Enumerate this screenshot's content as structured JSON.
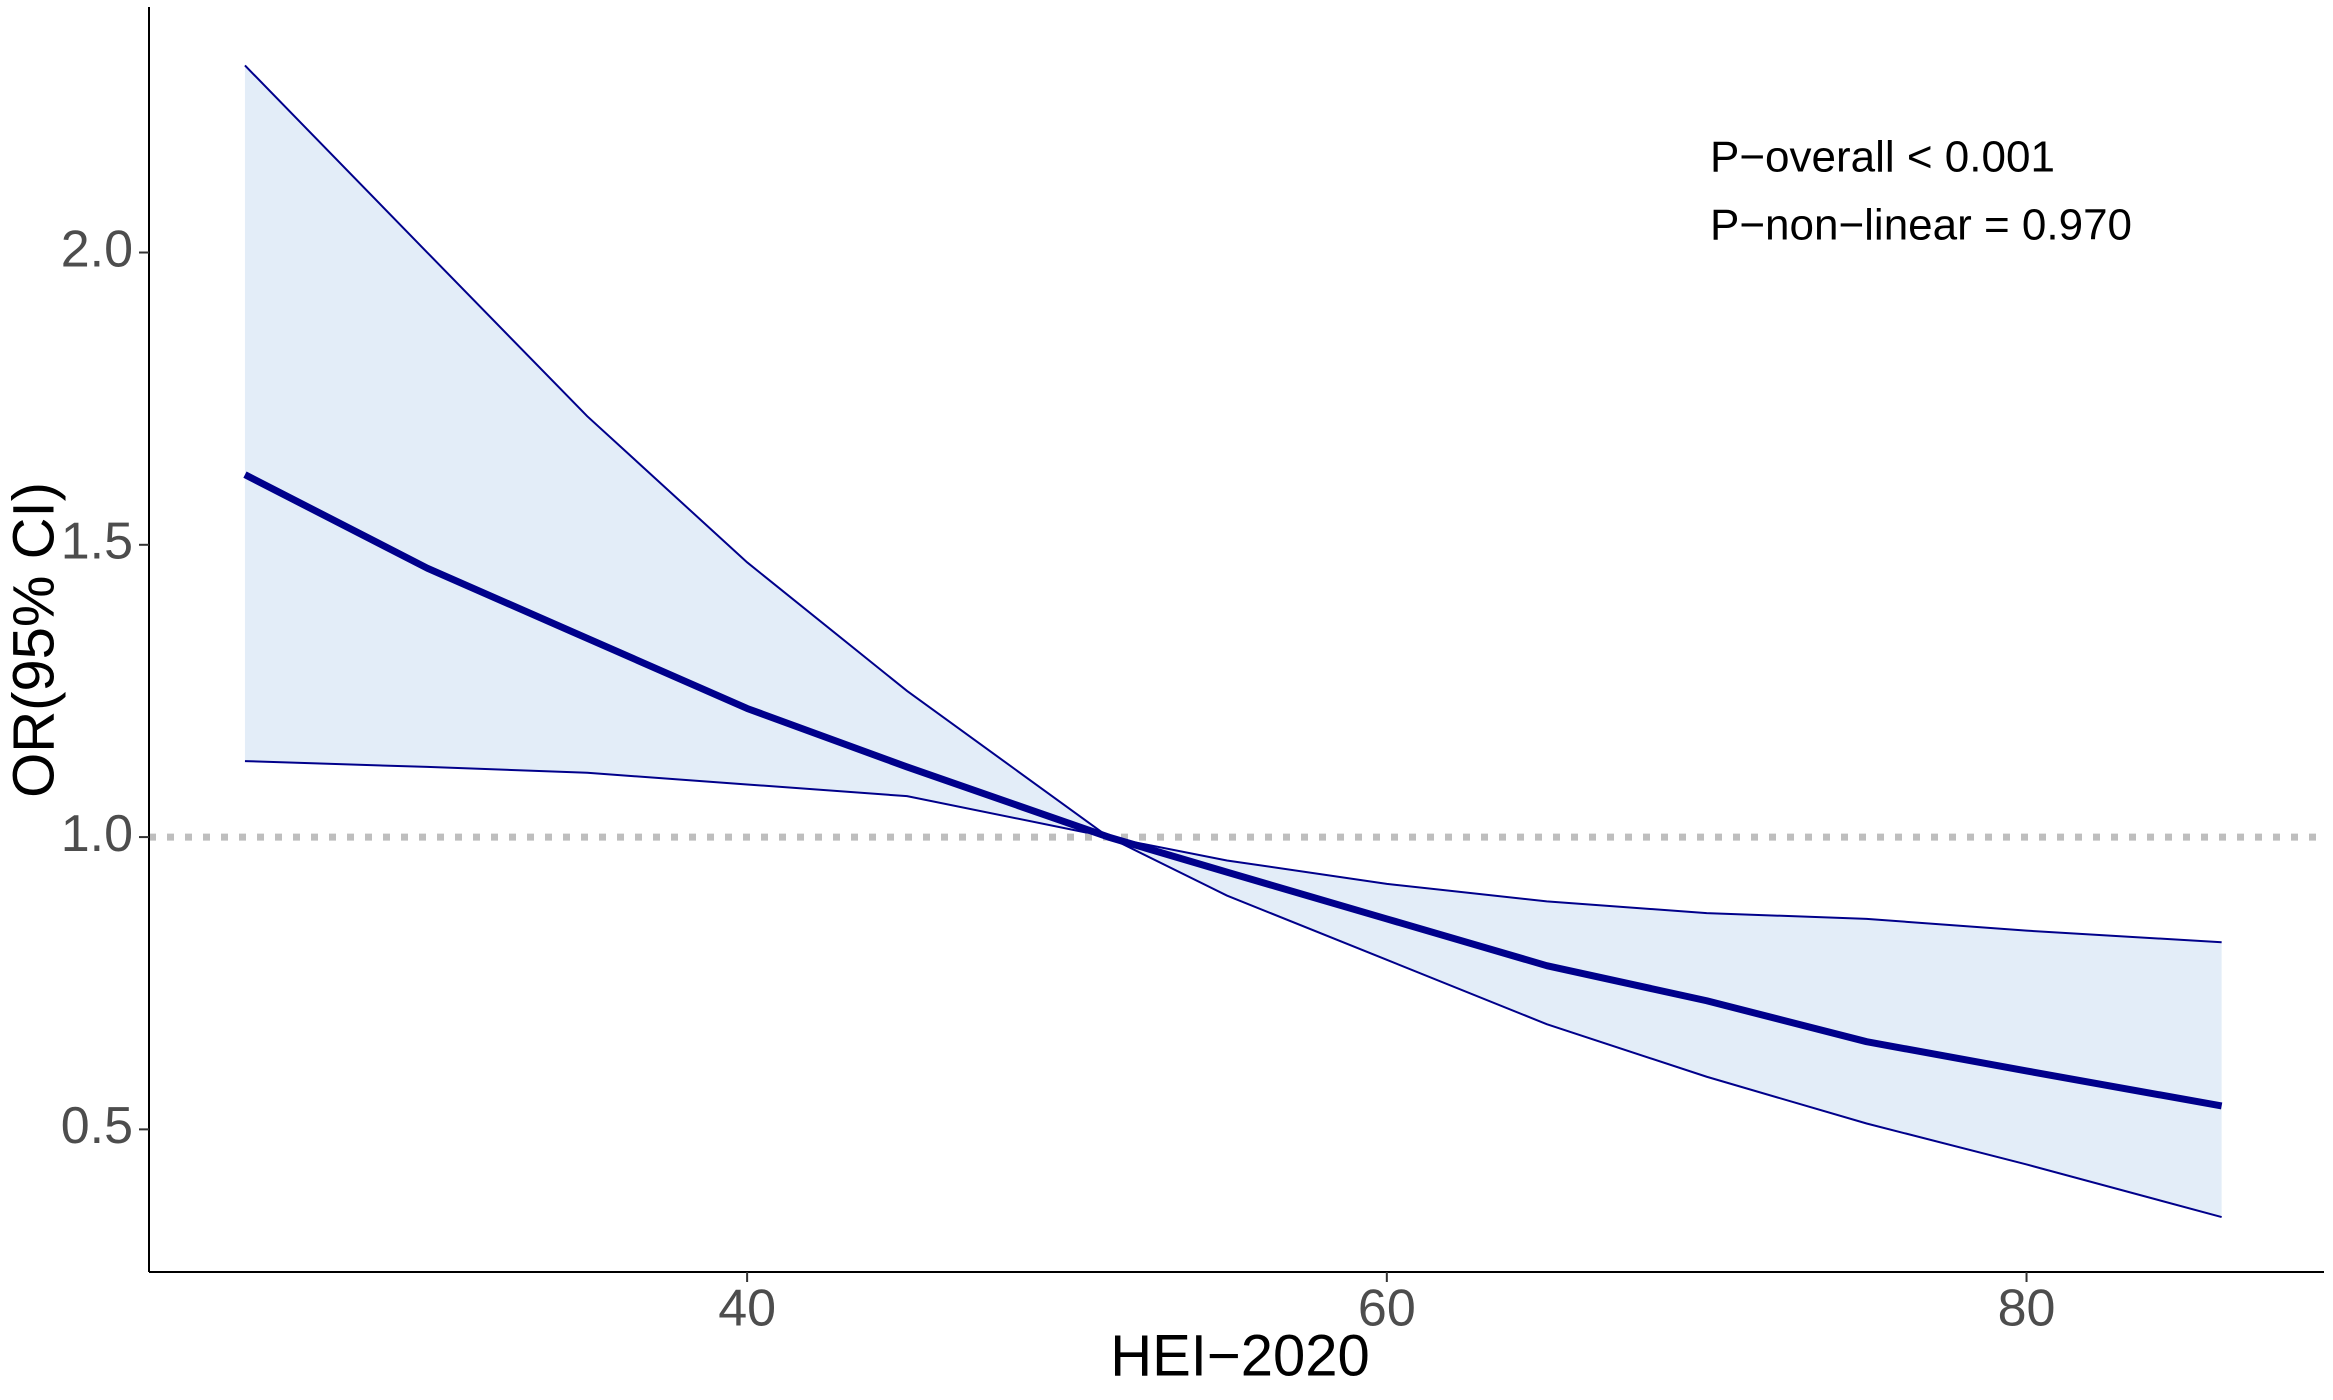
{
  "chart_data": {
    "type": "line",
    "x_label": "HEI−2020",
    "y_label": "OR(95% CI)",
    "annotations": [
      "P−overall < 0.001",
      "P−non−linear = 0.970"
    ],
    "x": [
      24.3,
      30,
      35,
      40,
      45,
      51.3,
      55,
      60,
      65,
      70,
      75,
      80,
      86.1
    ],
    "series": [
      {
        "color": "#00008b",
        "band_color": "#e3edf8",
        "values": [
          1.62,
          1.46,
          1.34,
          1.22,
          1.12,
          1.0,
          0.94,
          0.86,
          0.78,
          0.72,
          0.65,
          0.6,
          0.54
        ],
        "lower": [
          1.13,
          1.12,
          1.11,
          1.09,
          1.07,
          1.0,
          0.9,
          0.79,
          0.68,
          0.59,
          0.51,
          0.44,
          0.35
        ],
        "upper": [
          2.32,
          2.0,
          1.72,
          1.47,
          1.25,
          1.0,
          0.96,
          0.92,
          0.89,
          0.87,
          0.86,
          0.84,
          0.82
        ]
      }
    ],
    "xlim": [
      21.3,
      89.3
    ],
    "ylim": [
      0.256,
      2.42
    ],
    "xticks": [
      40,
      60,
      80
    ],
    "yticks": [
      {
        "value": 0.5,
        "label": "0.5"
      },
      {
        "value": 1,
        "label": "1.0"
      },
      {
        "value": 1.5,
        "label": "1.5"
      },
      {
        "value": 2,
        "label": "2.0"
      }
    ],
    "reference_line": {
      "value": 1,
      "color": "#bebebe"
    }
  }
}
